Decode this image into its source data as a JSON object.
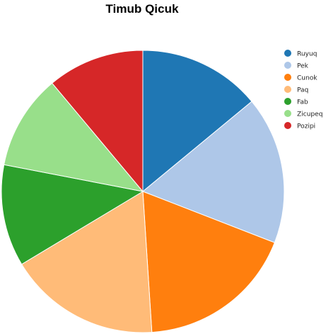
{
  "chart_data": {
    "type": "pie",
    "title": "Timub Qicuk",
    "legend_position": "right",
    "slices": [
      {
        "label": "Ruyuq",
        "value": 14.4,
        "color": "#1f77b4"
      },
      {
        "label": "Pek",
        "value": 17.4,
        "color": "#aec7e8"
      },
      {
        "label": "Cunok",
        "value": 18.6,
        "color": "#ff7f0e"
      },
      {
        "label": "Paq",
        "value": 17.9,
        "color": "#ffbb78"
      },
      {
        "label": "Fab",
        "value": 12.0,
        "color": "#2ca02c"
      },
      {
        "label": "Zicupeq",
        "value": 11.2,
        "color": "#98df8a"
      },
      {
        "label": "Pozipi",
        "value": 11.4,
        "color": "#d62728"
      }
    ]
  }
}
